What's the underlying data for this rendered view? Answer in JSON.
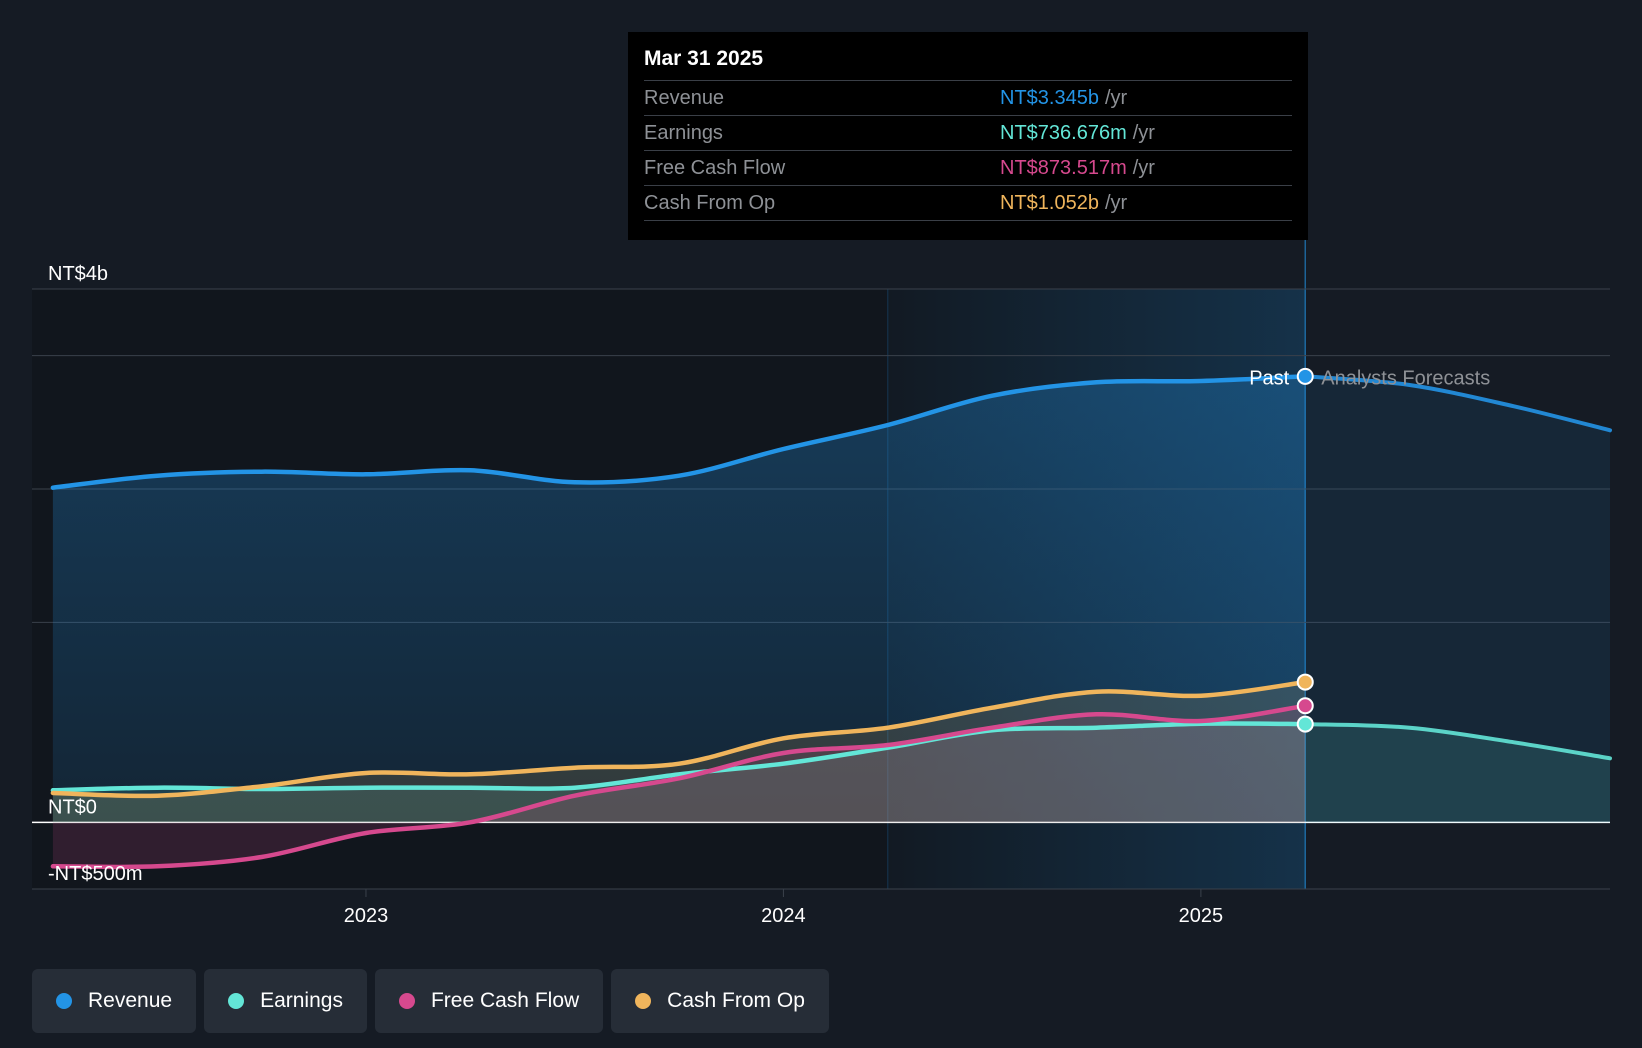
{
  "tooltip": {
    "date": "Mar 31 2025",
    "unit": "/yr",
    "rows": [
      {
        "label": "Revenue",
        "value": "NT$3.345b",
        "color": "#2394e6"
      },
      {
        "label": "Earnings",
        "value": "NT$736.676m",
        "color": "#63e6d7"
      },
      {
        "label": "Free Cash Flow",
        "value": "NT$873.517m",
        "color": "#d6498e"
      },
      {
        "label": "Cash From Op",
        "value": "NT$1.052b",
        "color": "#f0b55c"
      }
    ]
  },
  "legend": [
    {
      "label": "Revenue",
      "color": "#2394e6"
    },
    {
      "label": "Earnings",
      "color": "#63e6d7"
    },
    {
      "label": "Free Cash Flow",
      "color": "#d6498e"
    },
    {
      "label": "Cash From Op",
      "color": "#f0b55c"
    }
  ],
  "chart_data": {
    "type": "line",
    "title": "",
    "currency": "NT$",
    "y_tick_labels": [
      {
        "value": 4,
        "label": "NT$4b"
      },
      {
        "value": 0,
        "label": "NT$0"
      },
      {
        "value": -0.5,
        "label": "-NT$500m"
      }
    ],
    "y_grid": [
      4,
      3.5,
      2.5,
      1.5,
      0,
      -0.5
    ],
    "ylim": [
      -0.5,
      4
    ],
    "xlim": [
      2022.2,
      2025.98
    ],
    "x_ticks": [
      {
        "value": 2023,
        "label": "2023"
      },
      {
        "value": 2024,
        "label": "2024"
      },
      {
        "value": 2025,
        "label": "2025"
      }
    ],
    "highlight_start": 2024.25,
    "past_end": 2025.25,
    "past_label": "Past",
    "forecast_label": "Analysts Forecasts",
    "series": [
      {
        "name": "Revenue",
        "color": "#2394e6",
        "x": [
          2022.25,
          2022.5,
          2022.75,
          2023.0,
          2023.25,
          2023.5,
          2023.75,
          2024.0,
          2024.25,
          2024.5,
          2024.75,
          2025.0,
          2025.25
        ],
        "values": [
          2.51,
          2.6,
          2.63,
          2.61,
          2.64,
          2.55,
          2.6,
          2.8,
          2.98,
          3.2,
          3.3,
          3.31,
          3.345
        ],
        "forecast_x": [
          2025.25,
          2025.5,
          2025.75,
          2025.98
        ],
        "forecast_values": [
          3.345,
          3.28,
          3.12,
          2.94
        ]
      },
      {
        "name": "Earnings",
        "color": "#63e6d7",
        "x": [
          2022.25,
          2022.5,
          2022.75,
          2023.0,
          2023.25,
          2023.5,
          2023.75,
          2024.0,
          2024.25,
          2024.5,
          2024.75,
          2025.0,
          2025.25
        ],
        "values": [
          0.24,
          0.26,
          0.25,
          0.26,
          0.26,
          0.26,
          0.36,
          0.44,
          0.56,
          0.69,
          0.71,
          0.74,
          0.737
        ],
        "forecast_x": [
          2025.25,
          2025.5,
          2025.75,
          2025.98
        ],
        "forecast_values": [
          0.737,
          0.71,
          0.6,
          0.48
        ]
      },
      {
        "name": "Free Cash Flow",
        "color": "#d6498e",
        "x": [
          2022.25,
          2022.5,
          2022.75,
          2023.0,
          2023.25,
          2023.5,
          2023.75,
          2024.0,
          2024.25,
          2024.5,
          2024.75,
          2025.0,
          2025.25
        ],
        "values": [
          -0.33,
          -0.33,
          -0.26,
          -0.08,
          0.0,
          0.2,
          0.33,
          0.52,
          0.58,
          0.71,
          0.81,
          0.76,
          0.874
        ]
      },
      {
        "name": "Cash From Op",
        "color": "#f0b55c",
        "x": [
          2022.25,
          2022.5,
          2022.75,
          2023.0,
          2023.25,
          2023.5,
          2023.75,
          2024.0,
          2024.25,
          2024.5,
          2024.75,
          2025.0,
          2025.25
        ],
        "values": [
          0.22,
          0.2,
          0.27,
          0.37,
          0.36,
          0.41,
          0.44,
          0.63,
          0.71,
          0.86,
          0.98,
          0.95,
          1.052
        ]
      }
    ]
  }
}
